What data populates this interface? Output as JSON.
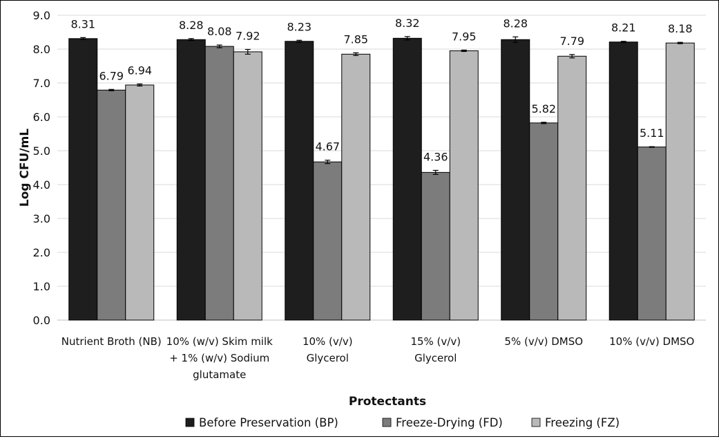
{
  "chart_data": {
    "type": "bar",
    "xlabel": "Protectants",
    "ylabel": "Log CFU/mL",
    "ylim": [
      0,
      9
    ],
    "yticks": [
      "0.0",
      "1.0",
      "2.0",
      "3.0",
      "4.0",
      "5.0",
      "6.0",
      "7.0",
      "8.0",
      "9.0"
    ],
    "grid": "horizontal",
    "legend_position": "bottom",
    "error_bars": true,
    "categories": [
      [
        "Nutrient Broth (NB)"
      ],
      [
        "10% (w/v) Skim milk",
        "+ 1% (w/v) Sodium",
        "glutamate"
      ],
      [
        "10% (v/v)",
        "Glycerol"
      ],
      [
        "15% (v/v)",
        "Glycerol"
      ],
      [
        "5% (v/v) DMSO"
      ],
      [
        "10% (v/v) DMSO"
      ]
    ],
    "series": [
      {
        "name": "Before Preservation (BP)",
        "color": "#1e1e1e",
        "values": [
          8.31,
          8.28,
          8.23,
          8.32,
          8.28,
          8.21
        ],
        "labels": [
          "8.31",
          "8.28",
          "8.23",
          "8.32",
          "8.28",
          "8.21"
        ],
        "errors": [
          0.03,
          0.03,
          0.03,
          0.05,
          0.08,
          0.02
        ]
      },
      {
        "name": "Freeze-Drying (FD)",
        "color": "#7c7c7c",
        "values": [
          6.79,
          8.08,
          4.67,
          4.36,
          5.82,
          5.11
        ],
        "labels": [
          "6.79",
          "8.08",
          "4.67",
          "4.36",
          "5.82",
          "5.11"
        ],
        "errors": [
          0.02,
          0.04,
          0.05,
          0.06,
          0.02,
          0.01
        ]
      },
      {
        "name": "Freezing (FZ)",
        "color": "#b9b9b9",
        "values": [
          6.94,
          7.92,
          7.85,
          7.95,
          7.79,
          8.18
        ],
        "labels": [
          "6.94",
          "7.92",
          "7.85",
          "7.95",
          "7.79",
          "8.18"
        ],
        "errors": [
          0.03,
          0.07,
          0.04,
          0.02,
          0.05,
          0.02
        ]
      }
    ]
  }
}
